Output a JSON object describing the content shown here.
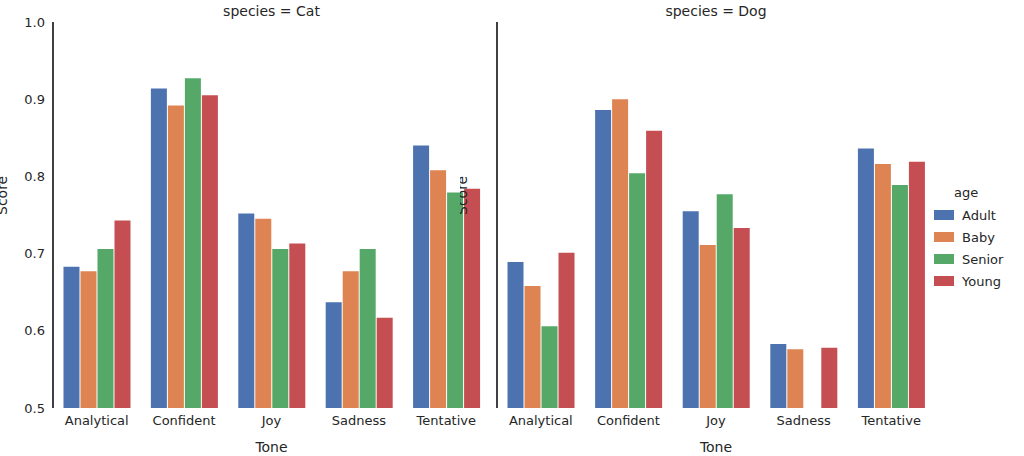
{
  "chart_data": [
    {
      "type": "bar",
      "title": "species = Cat",
      "x_label": "Tone",
      "y_label": "Score",
      "categories": [
        "Analytical",
        "Confident",
        "Joy",
        "Sadness",
        "Tentative"
      ],
      "series": [
        {
          "name": "Adult",
          "color": "#4c72b0",
          "values": [
            0.683,
            0.914,
            0.752,
            0.637,
            0.84
          ]
        },
        {
          "name": "Baby",
          "color": "#dd8452",
          "values": [
            0.677,
            0.892,
            0.745,
            0.677,
            0.808
          ]
        },
        {
          "name": "Senior",
          "color": "#55a868",
          "values": [
            0.706,
            0.927,
            0.706,
            0.706,
            0.779
          ]
        },
        {
          "name": "Young",
          "color": "#c44e52",
          "values": [
            0.743,
            0.905,
            0.713,
            0.617,
            0.784
          ]
        }
      ],
      "ylim": [
        0.5,
        1
      ],
      "yticks": [
        0.5,
        0.6,
        0.7,
        0.8,
        0.9,
        {
          "value": 1,
          "label": "1.0"
        }
      ],
      "grid": false
    },
    {
      "type": "bar",
      "title": "species = Dog",
      "x_label": "Tone",
      "y_label": "Score",
      "categories": [
        "Analytical",
        "Confident",
        "Joy",
        "Sadness",
        "Tentative"
      ],
      "series": [
        {
          "name": "Adult",
          "color": "#4c72b0",
          "values": [
            0.689,
            0.886,
            0.755,
            0.583,
            0.836
          ]
        },
        {
          "name": "Baby",
          "color": "#dd8452",
          "values": [
            0.658,
            0.9,
            0.711,
            0.576,
            0.816
          ]
        },
        {
          "name": "Senior",
          "color": "#55a868",
          "values": [
            0.606,
            0.804,
            0.777,
            null,
            0.789
          ]
        },
        {
          "name": "Young",
          "color": "#c44e52",
          "values": [
            0.701,
            0.859,
            0.733,
            0.578,
            0.819
          ]
        }
      ],
      "ylim": [
        0.5,
        1
      ],
      "yticks": [
        0.5,
        0.6,
        0.7,
        0.8,
        0.9,
        {
          "value": 1,
          "label": "1.0"
        }
      ],
      "grid": false,
      "tick_labels": "x",
      "legend": "right",
      "legend_title": "age"
    }
  ]
}
